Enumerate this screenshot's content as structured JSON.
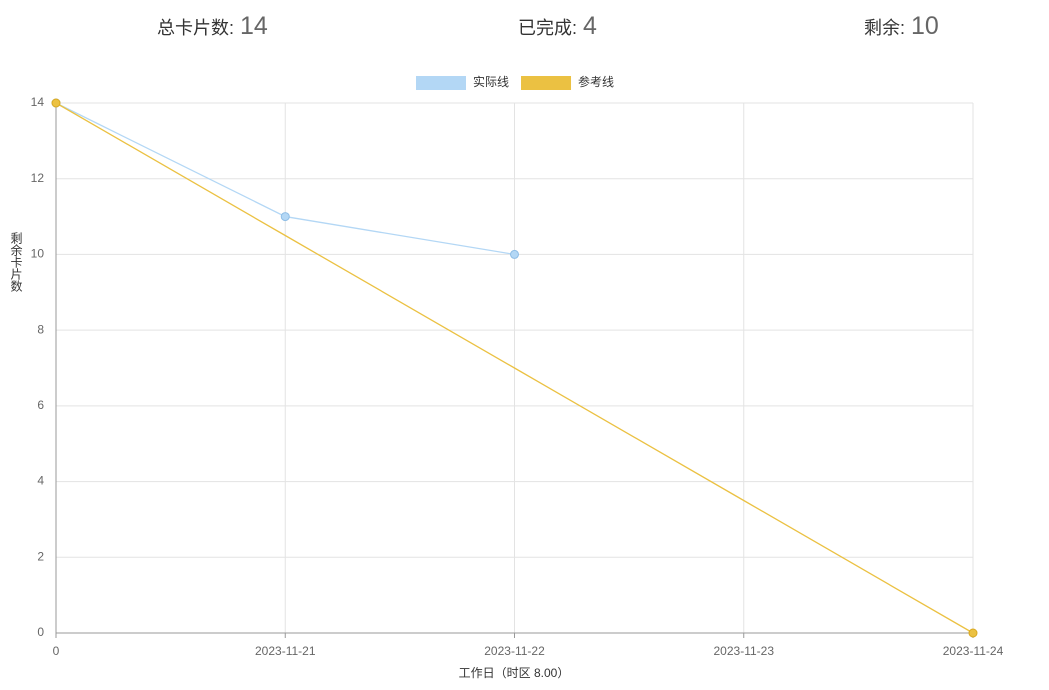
{
  "stats": [
    {
      "label": "总卡片数:",
      "value": 14
    },
    {
      "label": "已完成:",
      "value": 4
    },
    {
      "label": "剩余:",
      "value": 10
    }
  ],
  "chart_data": {
    "type": "line",
    "x_label": "工作日（时区 8.00）",
    "y_label": "剩余卡片数",
    "categories": [
      "0",
      "2023-11-21",
      "2023-11-22",
      "2023-11-23",
      "2023-11-24"
    ],
    "series": [
      {
        "name": "实际线",
        "color": "#b3d7f5",
        "values": [
          14,
          11,
          10,
          null,
          null
        ]
      },
      {
        "name": "参考线",
        "color": "#ebc142",
        "values": [
          14,
          10.5,
          7,
          3.5,
          0
        ]
      }
    ],
    "ylim": [
      0,
      14
    ],
    "yticks": [
      0,
      2,
      4,
      6,
      8,
      10,
      12,
      14
    ],
    "grid": true,
    "legend": "top"
  }
}
